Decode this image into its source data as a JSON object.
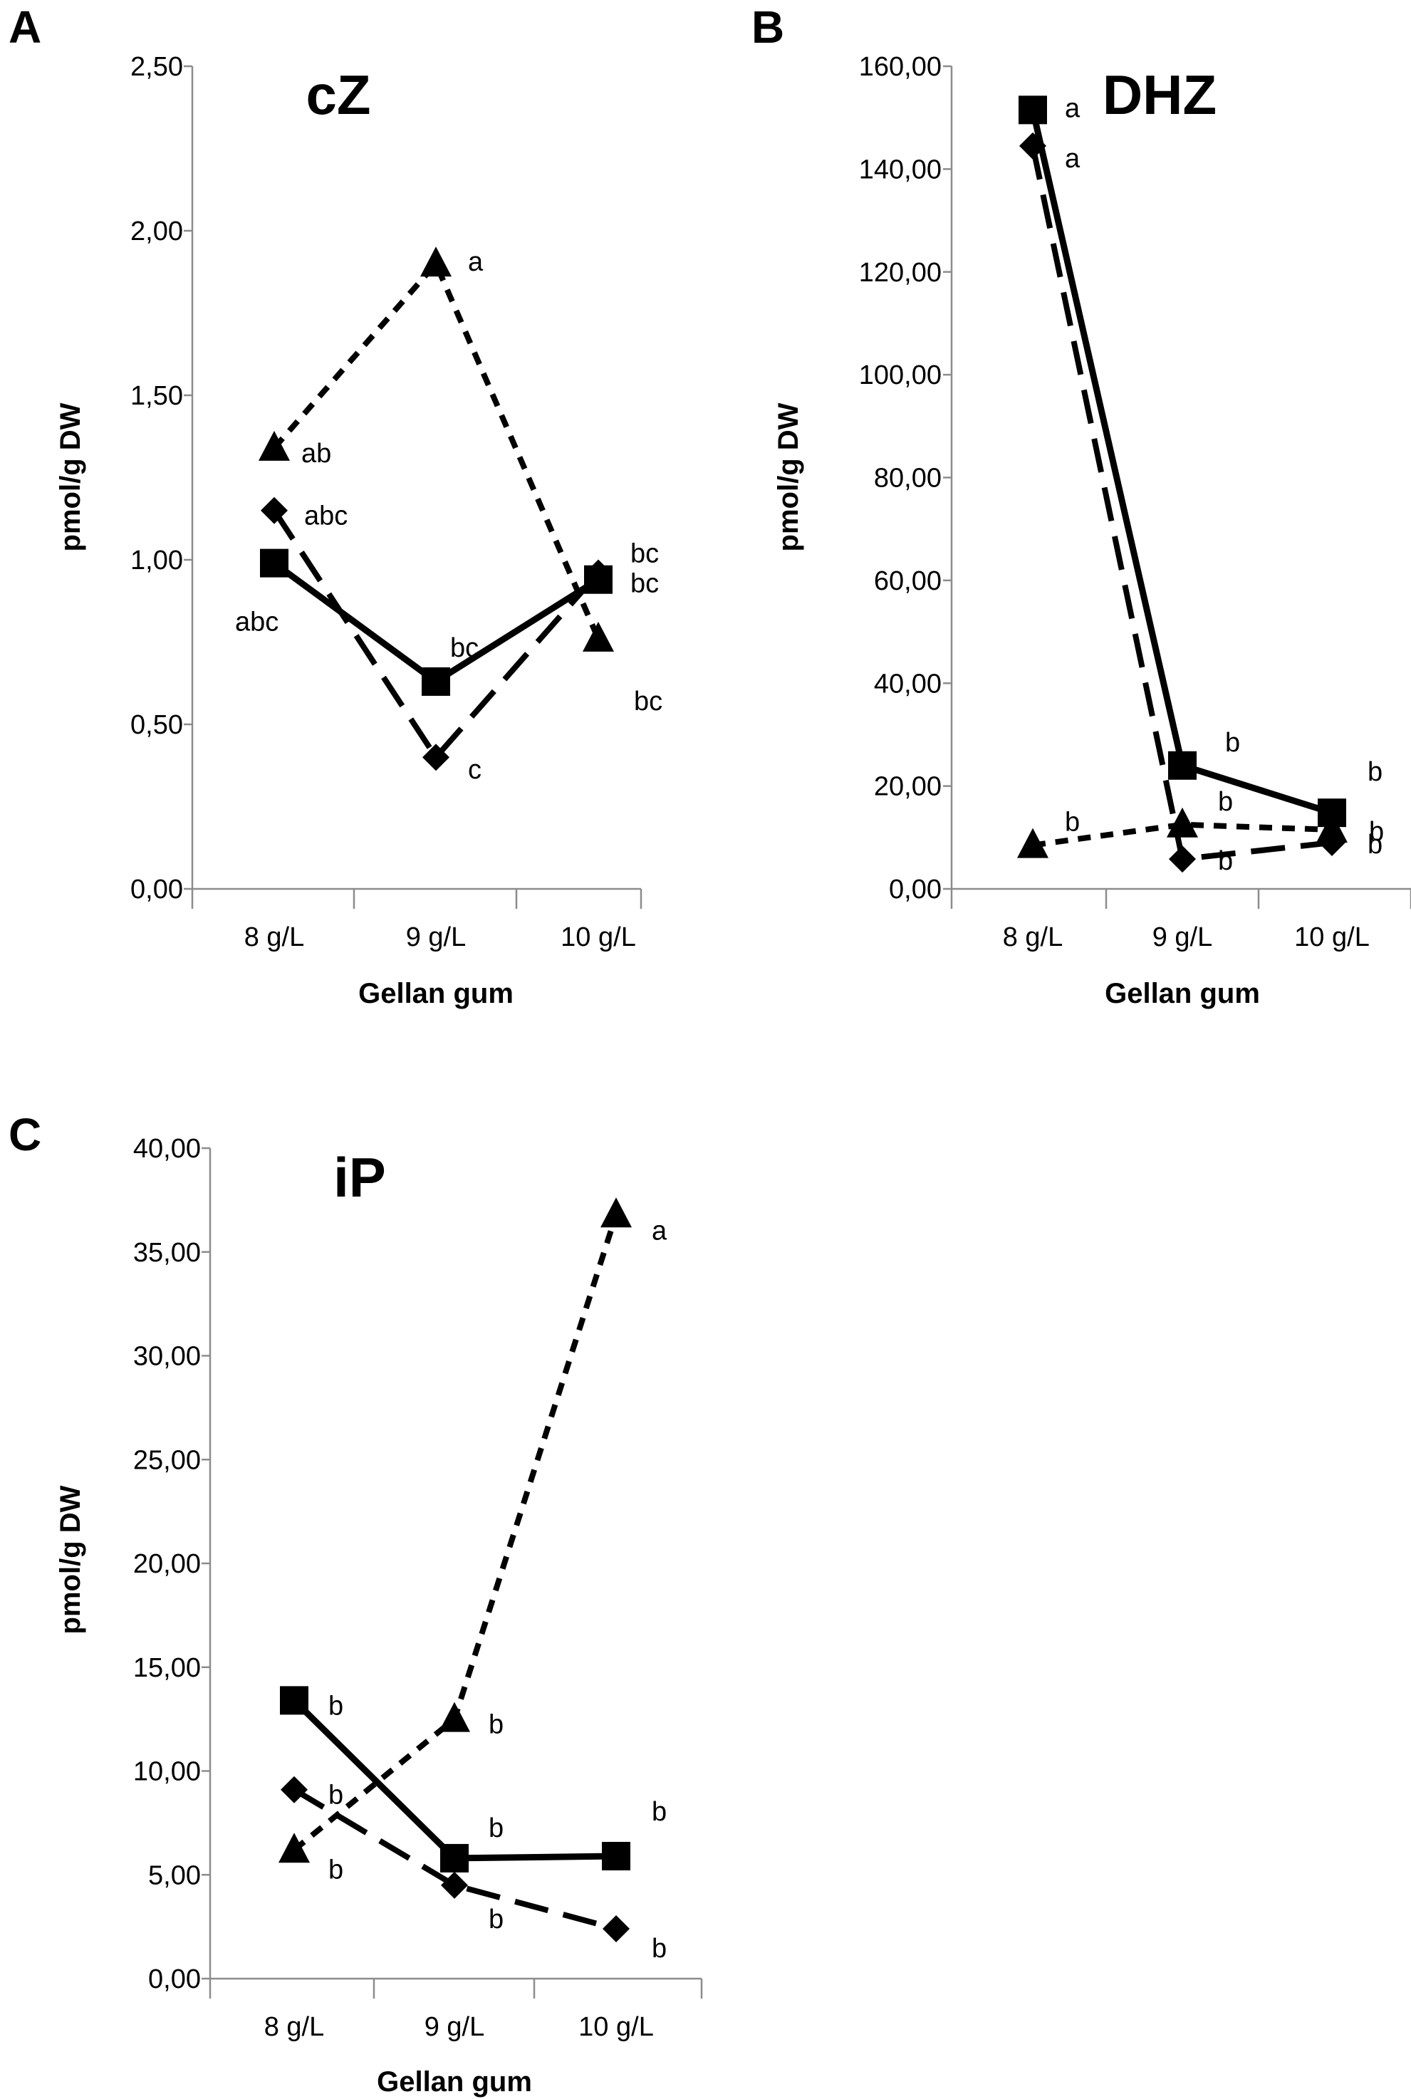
{
  "chart_data": [
    {
      "panel_label": "A",
      "type": "line",
      "title": "cZ",
      "xlabel": "Gellan gum",
      "ylabel": "pmol/g DW",
      "categories": [
        "8 g/L",
        "9 g/L",
        "10 g/L"
      ],
      "ylim": [
        0,
        2.5
      ],
      "yticks": [
        "0,00",
        "0,50",
        "1,00",
        "1,50",
        "2,00",
        "2,50"
      ],
      "ytick_values": [
        0,
        0.5,
        1,
        1.5,
        2,
        2.5
      ],
      "series": [
        {
          "name": "square-solid",
          "marker": "square",
          "line": "solid",
          "values": [
            0.99,
            0.63,
            0.94
          ],
          "labels": [
            "abc",
            "bc",
            "bc"
          ]
        },
        {
          "name": "diamond-long-dash",
          "marker": "diamond",
          "line": "long-dash",
          "values": [
            1.15,
            0.4,
            0.96
          ],
          "labels": [
            "abc",
            "c",
            "bc"
          ]
        },
        {
          "name": "triangle-short-dash",
          "marker": "triangle",
          "line": "short-dash",
          "values": [
            1.34,
            1.9,
            0.76
          ],
          "labels": [
            "ab",
            "a",
            "bc"
          ]
        }
      ]
    },
    {
      "panel_label": "B",
      "type": "line",
      "title": "DHZ",
      "xlabel": "Gellan gum",
      "ylabel": "pmol/g DW",
      "categories": [
        "8 g/L",
        "9 g/L",
        "10 g/L"
      ],
      "ylim": [
        0,
        160
      ],
      "yticks": [
        "0,00",
        "20,00",
        "40,00",
        "60,00",
        "80,00",
        "100,00",
        "120,00",
        "140,00",
        "160,00"
      ],
      "ytick_values": [
        0,
        20,
        40,
        60,
        80,
        100,
        120,
        140,
        160
      ],
      "series": [
        {
          "name": "square-solid",
          "marker": "square",
          "line": "solid",
          "values": [
            151.5,
            24.0,
            14.8
          ],
          "labels": [
            "a",
            "b",
            "b"
          ]
        },
        {
          "name": "diamond-long-dash",
          "marker": "diamond",
          "line": "long-dash",
          "values": [
            144.5,
            5.8,
            9.0
          ],
          "labels": [
            "a",
            "b",
            "b"
          ]
        },
        {
          "name": "triangle-short-dash",
          "marker": "triangle",
          "line": "short-dash",
          "values": [
            8.5,
            12.5,
            11.5
          ],
          "labels": [
            "b",
            "b",
            "b"
          ]
        }
      ]
    },
    {
      "panel_label": "C",
      "type": "line",
      "title": "iP",
      "xlabel": "Gellan gum",
      "ylabel": "pmol/g DW",
      "categories": [
        "8 g/L",
        "9 g/L",
        "10 g/L"
      ],
      "ylim": [
        0,
        40
      ],
      "yticks": [
        "0,00",
        "5,00",
        "10,00",
        "15,00",
        "20,00",
        "25,00",
        "30,00",
        "35,00",
        "40,00"
      ],
      "ytick_values": [
        0,
        5,
        10,
        15,
        20,
        25,
        30,
        35,
        40
      ],
      "series": [
        {
          "name": "square-solid",
          "marker": "square",
          "line": "solid",
          "values": [
            13.4,
            5.8,
            5.9
          ],
          "labels": [
            "b",
            "b",
            "b"
          ]
        },
        {
          "name": "diamond-long-dash",
          "marker": "diamond",
          "line": "long-dash",
          "values": [
            9.1,
            4.5,
            2.4
          ],
          "labels": [
            "b",
            "b",
            "b"
          ]
        },
        {
          "name": "triangle-short-dash",
          "marker": "triangle",
          "line": "short-dash",
          "values": [
            6.2,
            12.5,
            36.8
          ],
          "labels": [
            "b",
            "b",
            "a"
          ]
        }
      ]
    }
  ]
}
